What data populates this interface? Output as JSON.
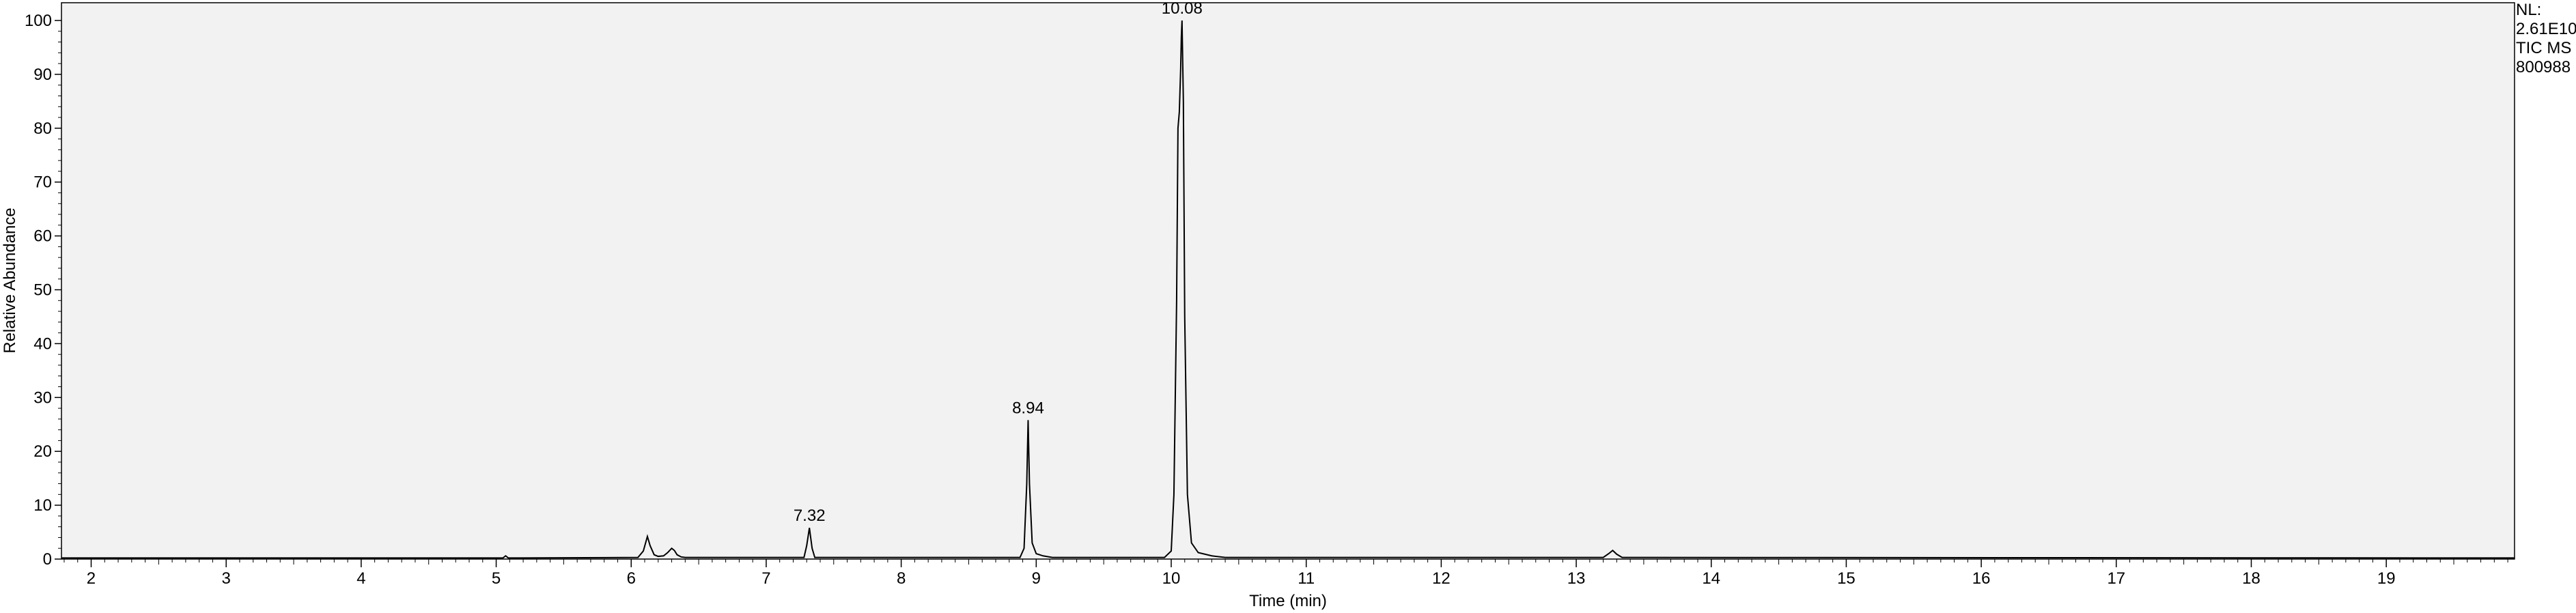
{
  "chart_data": {
    "type": "line",
    "xlabel": "Time (min)",
    "ylabel": "Relative Abundance",
    "xlim": [
      1.78,
      19.95
    ],
    "ylim": [
      0,
      100
    ],
    "x_ticks": [
      "2",
      "3",
      "4",
      "5",
      "6",
      "7",
      "8",
      "9",
      "10",
      "11",
      "12",
      "13",
      "14",
      "15",
      "16",
      "17",
      "18",
      "19"
    ],
    "y_ticks": [
      "0",
      "10",
      "20",
      "30",
      "40",
      "50",
      "60",
      "70",
      "80",
      "90",
      "100"
    ],
    "grid": false,
    "series": [
      {
        "x": [
          1.78,
          5.05,
          5.07,
          5.09,
          6.05,
          6.09,
          6.12,
          6.14,
          6.17,
          6.2,
          6.24,
          6.27,
          6.3,
          6.32,
          6.34,
          6.37,
          6.4,
          7.28,
          7.3,
          7.32,
          7.34,
          7.36,
          8.88,
          8.91,
          8.93,
          8.94,
          8.95,
          8.97,
          9.0,
          9.05,
          9.12,
          9.95,
          10.0,
          10.02,
          10.04,
          10.05,
          10.06,
          10.07,
          10.075,
          10.08,
          10.09,
          10.1,
          10.12,
          10.15,
          10.2,
          10.3,
          10.4,
          13.2,
          13.24,
          13.27,
          13.3,
          13.34,
          19.95
        ],
        "y": [
          0.2,
          0.2,
          0.6,
          0.2,
          0.3,
          1.5,
          4.2,
          2.5,
          0.8,
          0.5,
          0.6,
          1.2,
          2.0,
          1.6,
          0.8,
          0.4,
          0.3,
          0.3,
          2.5,
          5.8,
          2.0,
          0.3,
          0.3,
          2.0,
          14.0,
          25.8,
          14.0,
          3.0,
          1.0,
          0.6,
          0.3,
          0.3,
          1.5,
          12.0,
          48.0,
          80.0,
          83.0,
          91.0,
          97.0,
          100.0,
          85.0,
          45.0,
          12.0,
          3.0,
          1.2,
          0.6,
          0.3,
          0.3,
          1.0,
          1.6,
          0.9,
          0.3,
          0.2
        ]
      }
    ],
    "peak_labels": [
      {
        "text": "10.08",
        "x": 10.08,
        "y": 100.0
      },
      {
        "text": "8.94",
        "x": 8.94,
        "y": 25.8
      },
      {
        "text": "7.32",
        "x": 7.32,
        "y": 5.8
      }
    ],
    "colors": {
      "plot_background": "#f2f2f2",
      "trace": "#000000"
    },
    "annotation": {
      "lines": [
        "NL:",
        "2.61E10",
        "TIC  MS",
        "800988"
      ]
    }
  }
}
